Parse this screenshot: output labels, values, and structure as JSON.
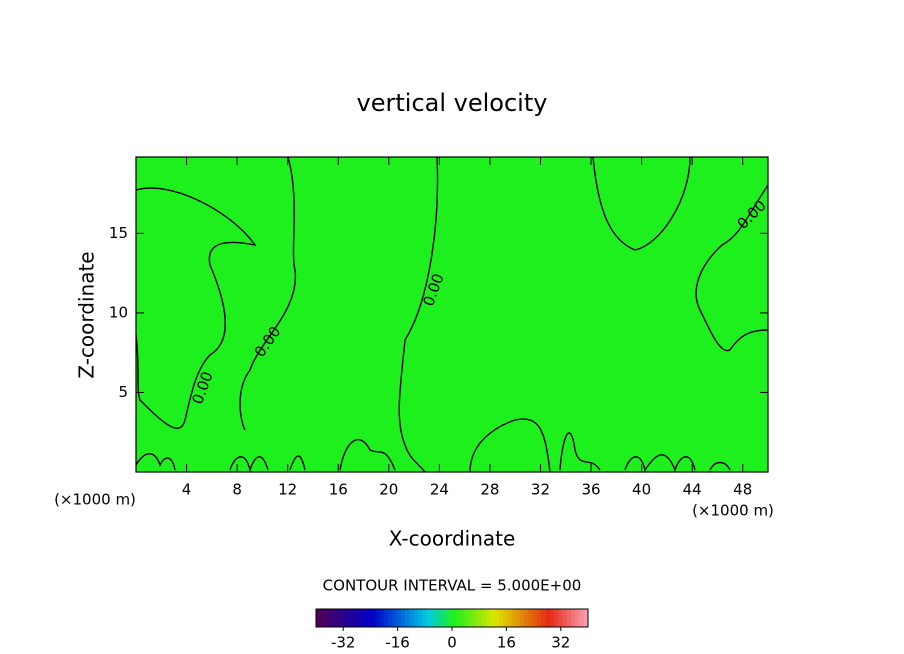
{
  "chart_data": {
    "type": "contour",
    "title": "vertical velocity",
    "xlabel": "X-coordinate",
    "ylabel": "Z-coordinate",
    "x_unit_left": "(×1000 m)",
    "x_unit_right": "(×1000 m)",
    "xlim": [
      0,
      50
    ],
    "xticks": [
      4,
      8,
      12,
      16,
      20,
      24,
      28,
      32,
      36,
      40,
      44,
      48
    ],
    "ylim": [
      0,
      19.8
    ],
    "yticks": [
      5,
      10,
      15
    ],
    "field_color": "#1ef01e",
    "contour_color": "#000000",
    "contour_labels": [
      "0.00",
      "0.00",
      "0.00",
      "0.00"
    ],
    "contour_interval_text": "CONTOUR INTERVAL = 5.000E+00",
    "clim": [
      -40,
      40
    ],
    "cinterval": 5,
    "cticks": [
      -32,
      -16,
      0,
      16,
      32
    ]
  }
}
